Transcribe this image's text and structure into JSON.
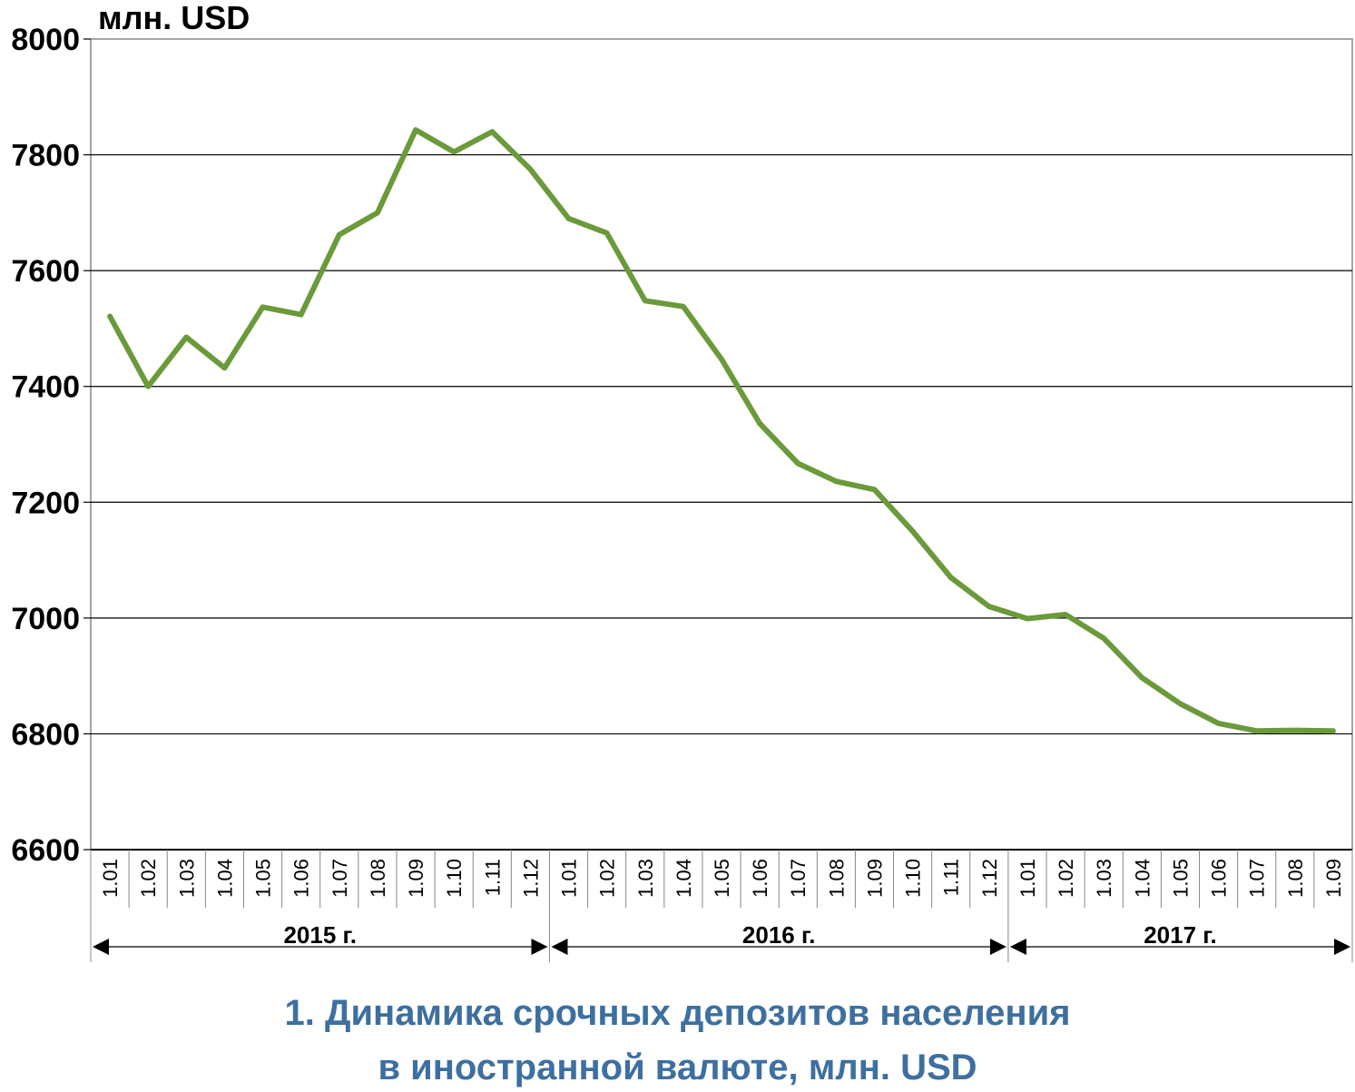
{
  "chart_data": {
    "type": "line",
    "ylabel": "млн. USD",
    "ylim": [
      6600,
      8000
    ],
    "yticks": [
      6600,
      6800,
      7000,
      7200,
      7400,
      7600,
      7800,
      8000
    ],
    "grid": true,
    "line_color": "#6a9a3a",
    "categories": [
      "1.01",
      "1.02",
      "1.03",
      "1.04",
      "1.05",
      "1.06",
      "1.07",
      "1.08",
      "1.09",
      "1.10",
      "1.11",
      "1.12",
      "1.01",
      "1.02",
      "1.03",
      "1.04",
      "1.05",
      "1.06",
      "1.07",
      "1.08",
      "1.09",
      "1.10",
      "1.11",
      "1.12",
      "1.01",
      "1.02",
      "1.03",
      "1.04",
      "1.05",
      "1.06",
      "1.07",
      "1.08",
      "1.09"
    ],
    "years": [
      {
        "label": "2015 г.",
        "start": 0,
        "end": 12
      },
      {
        "label": "2016 г.",
        "start": 12,
        "end": 24
      },
      {
        "label": "2017 г.",
        "start": 24,
        "end": 33
      }
    ],
    "series": [
      {
        "values": [
          7521,
          7400,
          7485,
          7432,
          7537,
          7524,
          7662,
          7700,
          7843,
          7805,
          7840,
          7775,
          7690,
          7665,
          7548,
          7538,
          7447,
          7336,
          7267,
          7236,
          7222,
          7150,
          7070,
          7020,
          6999,
          7006,
          6965,
          6897,
          6852,
          6818,
          6805,
          6806,
          6805
        ]
      }
    ]
  },
  "caption": {
    "line1": "1. Динамика срочных депозитов населения",
    "line2": "в иностранной валюте, млн. USD"
  }
}
